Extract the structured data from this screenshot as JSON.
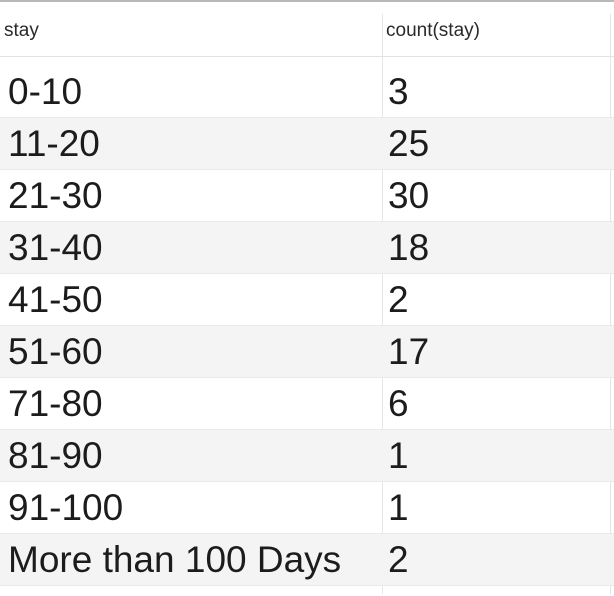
{
  "table": {
    "columns": [
      "stay",
      "count(stay)"
    ],
    "rows": [
      {
        "stay": "0-10",
        "count": "3"
      },
      {
        "stay": "11-20",
        "count": "25"
      },
      {
        "stay": "21-30",
        "count": "30"
      },
      {
        "stay": "31-40",
        "count": "18"
      },
      {
        "stay": "41-50",
        "count": "2"
      },
      {
        "stay": "51-60",
        "count": "17"
      },
      {
        "stay": "71-80",
        "count": "6"
      },
      {
        "stay": "81-90",
        "count": "1"
      },
      {
        "stay": "91-100",
        "count": "1"
      },
      {
        "stay": "More than 100 Days",
        "count": "2"
      }
    ]
  }
}
